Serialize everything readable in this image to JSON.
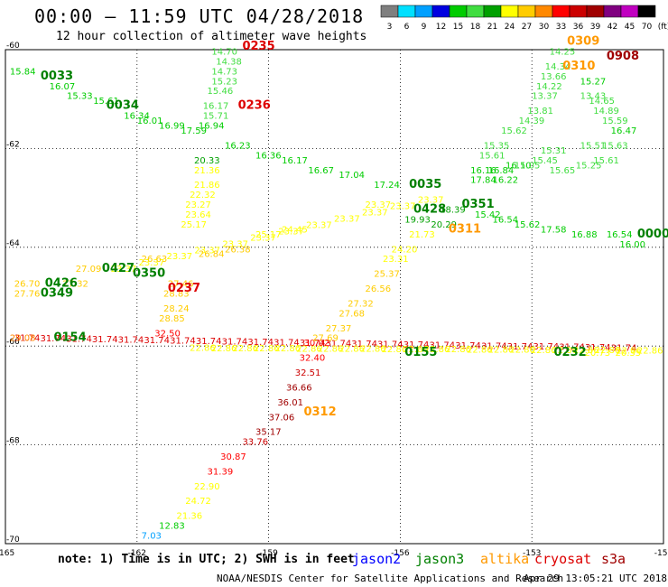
{
  "title": "00:00 – 11:59 UTC 04/28/2018",
  "subtitle": "12 hour collection of altimeter wave heights",
  "note": "note: 1) Time is in UTC; 2) SWH is in feet",
  "credit": "NOAA/NESDIS Center for Satellite Applications and Research",
  "stamp": "Apr 29 13:05:21 UTC 2018",
  "satellites": [
    {
      "name": "jason2",
      "color": "#0000ff"
    },
    {
      "name": "jason3",
      "color": "#008000"
    },
    {
      "name": "altika",
      "color": "#ff9900"
    },
    {
      "name": "cryosat",
      "color": "#dd0000"
    },
    {
      "name": "s3a",
      "color": "#a00000"
    }
  ],
  "colorbar": {
    "labels": [
      "3",
      "6",
      "9",
      "12",
      "15",
      "18",
      "21",
      "24",
      "27",
      "30",
      "33",
      "36",
      "39",
      "42",
      "45",
      "70",
      "(ft)"
    ],
    "colors": [
      "#7f7f7f",
      "#00e0ff",
      "#00a0ff",
      "#0000e0",
      "#00cc00",
      "#40dd40",
      "#00a000",
      "#ffff00",
      "#ffcc00",
      "#ff8800",
      "#ff0000",
      "#cc0000",
      "#a00000",
      "#800080",
      "#c000c0",
      "#000000"
    ]
  },
  "chart_data": {
    "type": "scatter",
    "xlim": [
      -165,
      -150
    ],
    "ylim": [
      -70,
      -60
    ],
    "xticks": [
      "-165",
      "-162",
      "-159",
      "-156",
      "-153",
      "-150"
    ],
    "yticks": [
      "-60",
      "-62",
      "-64",
      "-66",
      "-68",
      "-70"
    ],
    "grid": true,
    "times": [
      {
        "label": "0033",
        "x": -164.2,
        "y": -60.6,
        "color": "#008000"
      },
      {
        "label": "0034",
        "x": -162.7,
        "y": -61.2,
        "color": "#008000"
      },
      {
        "label": "0035",
        "x": -155.8,
        "y": -62.8,
        "color": "#008000"
      },
      {
        "label": "0235",
        "x": -159.6,
        "y": -60.0,
        "color": "#dd0000"
      },
      {
        "label": "0236",
        "x": -159.7,
        "y": -61.2,
        "color": "#dd0000"
      },
      {
        "label": "0237",
        "x": -161.3,
        "y": -64.9,
        "color": "#dd0000"
      },
      {
        "label": "0309",
        "x": -152.2,
        "y": -59.9,
        "color": "#ff9900"
      },
      {
        "label": "0310",
        "x": -152.3,
        "y": -60.4,
        "color": "#ff9900"
      },
      {
        "label": "0311",
        "x": -154.9,
        "y": -63.7,
        "color": "#ff9900"
      },
      {
        "label": "0312",
        "x": -158.2,
        "y": -67.4,
        "color": "#ff9900"
      },
      {
        "label": "0349",
        "x": -164.2,
        "y": -65.0,
        "color": "#008000"
      },
      {
        "label": "0350",
        "x": -162.1,
        "y": -64.6,
        "color": "#008000"
      },
      {
        "label": "0426",
        "x": -164.1,
        "y": -64.8,
        "color": "#008000"
      },
      {
        "label": "0427",
        "x": -162.8,
        "y": -64.5,
        "color": "#008000"
      },
      {
        "label": "0428",
        "x": -155.7,
        "y": -63.3,
        "color": "#008000"
      },
      {
        "label": "0154",
        "x": -163.9,
        "y": -65.9,
        "color": "#008000"
      },
      {
        "label": "0155",
        "x": -155.9,
        "y": -66.2,
        "color": "#008000"
      },
      {
        "label": "0232",
        "x": -152.5,
        "y": -66.2,
        "color": "#008000"
      },
      {
        "label": "0000",
        "x": -150.6,
        "y": -63.8,
        "color": "#008000"
      },
      {
        "label": "0908",
        "x": -151.3,
        "y": -60.2,
        "color": "#a00000"
      },
      {
        "label": "0351",
        "x": -154.6,
        "y": -63.2,
        "color": "#008000"
      }
    ],
    "points": [
      {
        "v": "15.84",
        "x": -164.9,
        "y": -60.5,
        "color": "#00cc00"
      },
      {
        "v": "16.07",
        "x": -164.0,
        "y": -60.8,
        "color": "#00cc00"
      },
      {
        "v": "15.33",
        "x": -163.6,
        "y": -61.0,
        "color": "#00cc00"
      },
      {
        "v": "15.61",
        "x": -163.0,
        "y": -61.1,
        "color": "#00cc00"
      },
      {
        "v": "16.34",
        "x": -162.3,
        "y": -61.4,
        "color": "#00cc00"
      },
      {
        "v": "16.01",
        "x": -162.0,
        "y": -61.5,
        "color": "#00cc00"
      },
      {
        "v": "16.99",
        "x": -161.5,
        "y": -61.6,
        "color": "#00cc00"
      },
      {
        "v": "17.59",
        "x": -161.0,
        "y": -61.7,
        "color": "#00cc00"
      },
      {
        "v": "14.70",
        "x": -160.3,
        "y": -60.1,
        "color": "#40dd40"
      },
      {
        "v": "14.38",
        "x": -160.2,
        "y": -60.3,
        "color": "#40dd40"
      },
      {
        "v": "14.73",
        "x": -160.3,
        "y": -60.5,
        "color": "#40dd40"
      },
      {
        "v": "15.23",
        "x": -160.3,
        "y": -60.7,
        "color": "#40dd40"
      },
      {
        "v": "15.46",
        "x": -160.4,
        "y": -60.9,
        "color": "#40dd40"
      },
      {
        "v": "16.17",
        "x": -160.5,
        "y": -61.2,
        "color": "#40dd40"
      },
      {
        "v": "15.71",
        "x": -160.5,
        "y": -61.4,
        "color": "#40dd40"
      },
      {
        "v": "16.94",
        "x": -160.6,
        "y": -61.6,
        "color": "#00cc00"
      },
      {
        "v": "16.23",
        "x": -160.0,
        "y": -62.0,
        "color": "#00cc00"
      },
      {
        "v": "16.36",
        "x": -159.3,
        "y": -62.2,
        "color": "#00cc00"
      },
      {
        "v": "16.17",
        "x": -158.7,
        "y": -62.3,
        "color": "#00cc00"
      },
      {
        "v": "16.67",
        "x": -158.1,
        "y": -62.5,
        "color": "#00cc00"
      },
      {
        "v": "17.04",
        "x": -157.4,
        "y": -62.6,
        "color": "#00cc00"
      },
      {
        "v": "17.24",
        "x": -156.6,
        "y": -62.8,
        "color": "#00cc00"
      },
      {
        "v": "20.33",
        "x": -160.7,
        "y": -62.3,
        "color": "#00a000"
      },
      {
        "v": "21.36",
        "x": -160.7,
        "y": -62.5,
        "color": "#ffff00"
      },
      {
        "v": "21.86",
        "x": -160.7,
        "y": -62.8,
        "color": "#ffff00"
      },
      {
        "v": "22.32",
        "x": -160.8,
        "y": -63.0,
        "color": "#ffff00"
      },
      {
        "v": "23.27",
        "x": -160.9,
        "y": -63.2,
        "color": "#ffff00"
      },
      {
        "v": "23.64",
        "x": -160.9,
        "y": -63.4,
        "color": "#ffff00"
      },
      {
        "v": "25.17",
        "x": -161.0,
        "y": -63.6,
        "color": "#ffff00"
      },
      {
        "v": "27.46",
        "x": -161.3,
        "y": -64.8,
        "color": "#ffcc00"
      },
      {
        "v": "28.83",
        "x": -161.4,
        "y": -65.0,
        "color": "#ffcc00"
      },
      {
        "v": "28.24",
        "x": -161.4,
        "y": -65.3,
        "color": "#ffcc00"
      },
      {
        "v": "28.85",
        "x": -161.5,
        "y": -65.5,
        "color": "#ffcc00"
      },
      {
        "v": "32.50",
        "x": -161.6,
        "y": -65.8,
        "color": "#ff0000"
      },
      {
        "v": "30.02",
        "x": -158.2,
        "y": -66.0,
        "color": "#ff0000"
      },
      {
        "v": "32.40",
        "x": -158.3,
        "y": -66.3,
        "color": "#ff0000"
      },
      {
        "v": "32.51",
        "x": -158.4,
        "y": -66.6,
        "color": "#cc0000"
      },
      {
        "v": "36.66",
        "x": -158.6,
        "y": -66.9,
        "color": "#a00000"
      },
      {
        "v": "36.01",
        "x": -158.8,
        "y": -67.2,
        "color": "#a00000"
      },
      {
        "v": "37.06",
        "x": -159.0,
        "y": -67.5,
        "color": "#a00000"
      },
      {
        "v": "35.17",
        "x": -159.3,
        "y": -67.8,
        "color": "#a00000"
      },
      {
        "v": "33.76",
        "x": -159.6,
        "y": -68.0,
        "color": "#cc0000"
      },
      {
        "v": "30.87",
        "x": -160.1,
        "y": -68.3,
        "color": "#ff0000"
      },
      {
        "v": "31.39",
        "x": -160.4,
        "y": -68.6,
        "color": "#ff0000"
      },
      {
        "v": "22.90",
        "x": -160.7,
        "y": -68.9,
        "color": "#ffff00"
      },
      {
        "v": "24.72",
        "x": -160.9,
        "y": -69.2,
        "color": "#ffff00"
      },
      {
        "v": "21.36",
        "x": -161.1,
        "y": -69.5,
        "color": "#ffff00"
      },
      {
        "v": "12.83",
        "x": -161.5,
        "y": -69.7,
        "color": "#00cc00"
      },
      {
        "v": "7.03",
        "x": -161.9,
        "y": -69.9,
        "color": "#00a0ff"
      },
      {
        "v": "24.20",
        "x": -156.2,
        "y": -64.1,
        "color": "#ffff00"
      },
      {
        "v": "23.31",
        "x": -156.4,
        "y": -64.3,
        "color": "#ffff00"
      },
      {
        "v": "25.37",
        "x": -156.6,
        "y": -64.6,
        "color": "#ffcc00"
      },
      {
        "v": "26.56",
        "x": -156.8,
        "y": -64.9,
        "color": "#ffcc00"
      },
      {
        "v": "27.32",
        "x": -157.2,
        "y": -65.2,
        "color": "#ffcc00"
      },
      {
        "v": "27.68",
        "x": -157.4,
        "y": -65.4,
        "color": "#ffcc00"
      },
      {
        "v": "27.37",
        "x": -157.7,
        "y": -65.7,
        "color": "#ffcc00"
      },
      {
        "v": "27.69",
        "x": -158.0,
        "y": -65.9,
        "color": "#ffcc00"
      },
      {
        "v": "21.73",
        "x": -155.8,
        "y": -63.8,
        "color": "#ffff00"
      },
      {
        "v": "19.93",
        "x": -155.9,
        "y": -63.5,
        "color": "#00a000"
      },
      {
        "v": "20.29",
        "x": -155.3,
        "y": -63.6,
        "color": "#00a000"
      },
      {
        "v": "15.42",
        "x": -154.3,
        "y": -63.4,
        "color": "#00cc00"
      },
      {
        "v": "16.54",
        "x": -153.9,
        "y": -63.5,
        "color": "#00cc00"
      },
      {
        "v": "15.62",
        "x": -153.4,
        "y": -63.6,
        "color": "#00cc00"
      },
      {
        "v": "17.58",
        "x": -152.8,
        "y": -63.7,
        "color": "#00cc00"
      },
      {
        "v": "16.88",
        "x": -152.1,
        "y": -63.8,
        "color": "#00cc00"
      },
      {
        "v": "16.54",
        "x": -151.3,
        "y": -63.8,
        "color": "#00cc00"
      },
      {
        "v": "16.00",
        "x": -151.0,
        "y": -64.0,
        "color": "#00cc00"
      },
      {
        "v": "16.10",
        "x": -153.6,
        "y": -62.4,
        "color": "#00cc00"
      },
      {
        "v": "16.84",
        "x": -154.0,
        "y": -62.5,
        "color": "#00cc00"
      },
      {
        "v": "16.22",
        "x": -153.9,
        "y": -62.7,
        "color": "#00cc00"
      },
      {
        "v": "17.84",
        "x": -154.4,
        "y": -62.7,
        "color": "#00cc00"
      },
      {
        "v": "16.16",
        "x": -154.4,
        "y": -62.5,
        "color": "#00cc00"
      },
      {
        "v": "15.61",
        "x": -154.2,
        "y": -62.2,
        "color": "#40dd40"
      },
      {
        "v": "15.35",
        "x": -154.1,
        "y": -62.0,
        "color": "#40dd40"
      },
      {
        "v": "15.62",
        "x": -153.7,
        "y": -61.7,
        "color": "#40dd40"
      },
      {
        "v": "14.39",
        "x": -153.3,
        "y": -61.5,
        "color": "#40dd40"
      },
      {
        "v": "13.81",
        "x": -153.1,
        "y": -61.3,
        "color": "#40dd40"
      },
      {
        "v": "13.37",
        "x": -153.0,
        "y": -61.0,
        "color": "#40dd40"
      },
      {
        "v": "14.22",
        "x": -152.9,
        "y": -60.8,
        "color": "#40dd40"
      },
      {
        "v": "13.66",
        "x": -152.8,
        "y": -60.6,
        "color": "#40dd40"
      },
      {
        "v": "14.34",
        "x": -152.7,
        "y": -60.4,
        "color": "#40dd40"
      },
      {
        "v": "14.25",
        "x": -152.6,
        "y": -60.1,
        "color": "#40dd40"
      },
      {
        "v": "15.27",
        "x": -151.9,
        "y": -60.7,
        "color": "#00cc00"
      },
      {
        "v": "13.43",
        "x": -151.9,
        "y": -61.0,
        "color": "#40dd40"
      },
      {
        "v": "14.65",
        "x": -151.7,
        "y": -61.1,
        "color": "#40dd40"
      },
      {
        "v": "14.89",
        "x": -151.6,
        "y": -61.3,
        "color": "#40dd40"
      },
      {
        "v": "15.59",
        "x": -151.4,
        "y": -61.5,
        "color": "#40dd40"
      },
      {
        "v": "16.47",
        "x": -151.2,
        "y": -61.7,
        "color": "#00cc00"
      },
      {
        "v": "15.05",
        "x": -153.4,
        "y": -62.4,
        "color": "#40dd40"
      },
      {
        "v": "15.45",
        "x": -153.0,
        "y": -62.3,
        "color": "#40dd40"
      },
      {
        "v": "15.31",
        "x": -152.8,
        "y": -62.1,
        "color": "#40dd40"
      },
      {
        "v": "15.65",
        "x": -152.6,
        "y": -62.5,
        "color": "#40dd40"
      },
      {
        "v": "15.25",
        "x": -152.0,
        "y": -62.4,
        "color": "#40dd40"
      },
      {
        "v": "15.61",
        "x": -151.6,
        "y": -62.3,
        "color": "#40dd40"
      },
      {
        "v": "15.51",
        "x": -151.9,
        "y": -62.0,
        "color": "#40dd40"
      },
      {
        "v": "15.63",
        "x": -151.4,
        "y": -62.0,
        "color": "#40dd40"
      },
      {
        "v": "29.08",
        "x": -164.9,
        "y": -65.9,
        "color": "#ff8800"
      },
      {
        "v": "20.73",
        "x": -151.8,
        "y": -66.2,
        "color": "#ffff00"
      },
      {
        "v": "20.35",
        "x": -151.1,
        "y": -66.2,
        "color": "#ffff00"
      },
      {
        "v": "25.17",
        "x": -159.3,
        "y": -63.8,
        "color": "#ffff00"
      },
      {
        "v": "24.45",
        "x": -158.7,
        "y": -63.7,
        "color": "#ffff00"
      },
      {
        "v": "27.32",
        "x": -163.7,
        "y": -64.8,
        "color": "#ffcc00"
      },
      {
        "v": "27.09",
        "x": -163.4,
        "y": -64.5,
        "color": "#ffcc00"
      },
      {
        "v": "26.70",
        "x": -164.8,
        "y": -64.8,
        "color": "#ffcc00"
      },
      {
        "v": "27.76",
        "x": -164.8,
        "y": -65.0,
        "color": "#ffcc00"
      },
      {
        "v": "26.63",
        "x": -161.9,
        "y": -64.3,
        "color": "#ffcc00"
      },
      {
        "v": "26.84",
        "x": -160.6,
        "y": -64.2,
        "color": "#ffcc00"
      },
      {
        "v": "26.38",
        "x": -160.0,
        "y": -64.1,
        "color": "#ffcc00"
      },
      {
        "v": "23.37",
        "x": -156.8,
        "y": -63.2,
        "color": "#ffff00"
      },
      {
        "v": "18.39",
        "x": -155.1,
        "y": -63.3,
        "color": "#00a000"
      }
    ]
  }
}
